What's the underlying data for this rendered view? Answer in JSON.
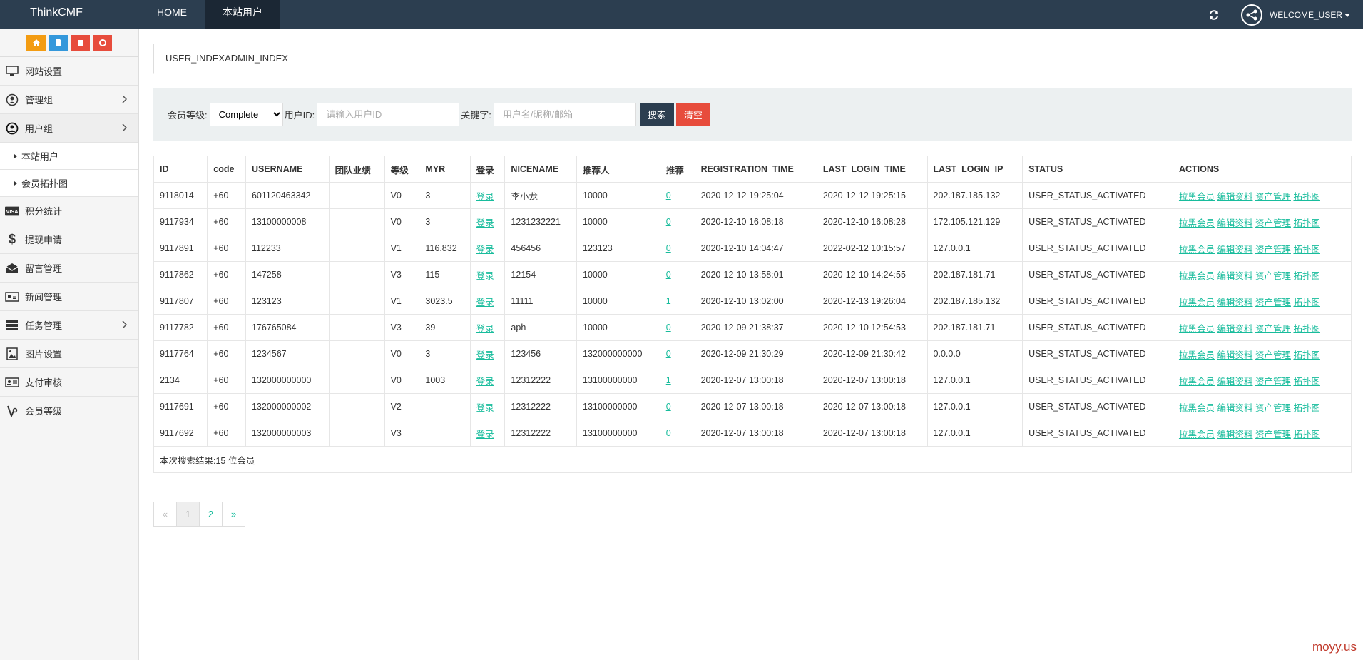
{
  "brand": "ThinkCMF",
  "topnav": [
    "HOME",
    "本站用户"
  ],
  "user": {
    "welcome": "WELCOME_USER"
  },
  "sidebar": {
    "items": [
      {
        "label": "网站设置",
        "icon": "monitor-icon"
      },
      {
        "label": "管理组",
        "icon": "user-circle-icon",
        "has_children": true
      },
      {
        "label": "用户组",
        "icon": "user-circle-icon",
        "has_children": true,
        "open": true,
        "children": [
          "本站用户",
          "会员拓扑图"
        ]
      },
      {
        "label": "积分统计",
        "icon": "visa-icon"
      },
      {
        "label": "提现申请",
        "icon": "dollar-icon"
      },
      {
        "label": "留言管理",
        "icon": "envelope-open-icon"
      },
      {
        "label": "新闻管理",
        "icon": "newspaper-icon"
      },
      {
        "label": "任务管理",
        "icon": "server-icon",
        "has_children": true
      },
      {
        "label": "图片设置",
        "icon": "picture-icon"
      },
      {
        "label": "支付审核",
        "icon": "id-card-icon"
      },
      {
        "label": "会员等级",
        "icon": "volume-control-icon"
      }
    ]
  },
  "tab": "USER_INDEXADMIN_INDEX",
  "filter": {
    "level_label": "会员等级:",
    "level_value": "Complete",
    "userid_label": "用户ID:",
    "userid_placeholder": "请输入用户ID",
    "keyword_label": "关键字:",
    "keyword_placeholder": "用户名/昵称/邮箱",
    "search_label": "搜索",
    "clear_label": "清空"
  },
  "table": {
    "columns": [
      "ID",
      "code",
      "USERNAME",
      "团队业绩",
      "等级",
      "MYR",
      "登录",
      "NICENAME",
      "推荐人",
      "推荐",
      "REGISTRATION_TIME",
      "LAST_LOGIN_TIME",
      "LAST_LOGIN_IP",
      "STATUS",
      "ACTIONS"
    ],
    "login_link": "登录",
    "actions": [
      "拉黑会员",
      "编辑资料",
      "资产管理",
      "拓扑图"
    ],
    "rows": [
      {
        "id": "9118014",
        "code": "+60",
        "username": "601120463342",
        "team": "",
        "level": "V0",
        "myr": "3",
        "nicename": "李小龙",
        "referrer": "10000",
        "referrals": "0",
        "reg_time": "2020-12-12 19:25:04",
        "last_login": "2020-12-12 19:25:15",
        "ip": "202.187.185.132",
        "status": "USER_STATUS_ACTIVATED"
      },
      {
        "id": "9117934",
        "code": "+60",
        "username": "13100000008",
        "team": "",
        "level": "V0",
        "myr": "3",
        "nicename": "1231232221",
        "referrer": "10000",
        "referrals": "0",
        "reg_time": "2020-12-10 16:08:18",
        "last_login": "2020-12-10 16:08:28",
        "ip": "172.105.121.129",
        "status": "USER_STATUS_ACTIVATED"
      },
      {
        "id": "9117891",
        "code": "+60",
        "username": "112233",
        "team": "",
        "level": "V1",
        "myr": "116.832",
        "nicename": "456456",
        "referrer": "123123",
        "referrals": "0",
        "reg_time": "2020-12-10 14:04:47",
        "last_login": "2022-02-12 10:15:57",
        "ip": "127.0.0.1",
        "status": "USER_STATUS_ACTIVATED"
      },
      {
        "id": "9117862",
        "code": "+60",
        "username": "147258",
        "team": "",
        "level": "V3",
        "myr": "115",
        "nicename": "12154",
        "referrer": "10000",
        "referrals": "0",
        "reg_time": "2020-12-10 13:58:01",
        "last_login": "2020-12-10 14:24:55",
        "ip": "202.187.181.71",
        "status": "USER_STATUS_ACTIVATED"
      },
      {
        "id": "9117807",
        "code": "+60",
        "username": "123123",
        "team": "",
        "level": "V1",
        "myr": "3023.5",
        "nicename": "11111",
        "referrer": "10000",
        "referrals": "1",
        "reg_time": "2020-12-10 13:02:00",
        "last_login": "2020-12-13 19:26:04",
        "ip": "202.187.185.132",
        "status": "USER_STATUS_ACTIVATED"
      },
      {
        "id": "9117782",
        "code": "+60",
        "username": "176765084",
        "team": "",
        "level": "V3",
        "myr": "39",
        "nicename": "aph",
        "referrer": "10000",
        "referrals": "0",
        "reg_time": "2020-12-09 21:38:37",
        "last_login": "2020-12-10 12:54:53",
        "ip": "202.187.181.71",
        "status": "USER_STATUS_ACTIVATED"
      },
      {
        "id": "9117764",
        "code": "+60",
        "username": "1234567",
        "team": "",
        "level": "V0",
        "myr": "3",
        "nicename": "123456",
        "referrer": "132000000000",
        "referrals": "0",
        "reg_time": "2020-12-09 21:30:29",
        "last_login": "2020-12-09 21:30:42",
        "ip": "0.0.0.0",
        "status": "USER_STATUS_ACTIVATED"
      },
      {
        "id": "2134",
        "code": "+60",
        "username": "132000000000",
        "team": "",
        "level": "V0",
        "myr": "1003",
        "nicename": "12312222",
        "referrer": "13100000000",
        "referrals": "1",
        "reg_time": "2020-12-07 13:00:18",
        "last_login": "2020-12-07 13:00:18",
        "ip": "127.0.0.1",
        "status": "USER_STATUS_ACTIVATED"
      },
      {
        "id": "9117691",
        "code": "+60",
        "username": "132000000002",
        "team": "",
        "level": "V2",
        "myr": "",
        "nicename": "12312222",
        "referrer": "13100000000",
        "referrals": "0",
        "reg_time": "2020-12-07 13:00:18",
        "last_login": "2020-12-07 13:00:18",
        "ip": "127.0.0.1",
        "status": "USER_STATUS_ACTIVATED"
      },
      {
        "id": "9117692",
        "code": "+60",
        "username": "132000000003",
        "team": "",
        "level": "V3",
        "myr": "",
        "nicename": "12312222",
        "referrer": "13100000000",
        "referrals": "0",
        "reg_time": "2020-12-07 13:00:18",
        "last_login": "2020-12-07 13:00:18",
        "ip": "127.0.0.1",
        "status": "USER_STATUS_ACTIVATED"
      }
    ],
    "summary": "本次搜索结果:15 位会员"
  },
  "pagination": {
    "prev": "«",
    "pages": [
      "1",
      "2"
    ],
    "current": "1",
    "next": "»"
  },
  "watermark": "moyy.us",
  "colors": {
    "topbar": "#2c3e50",
    "link": "#18bc9c",
    "danger": "#e74c3c",
    "warning": "#f39c12",
    "info": "#3498db"
  }
}
